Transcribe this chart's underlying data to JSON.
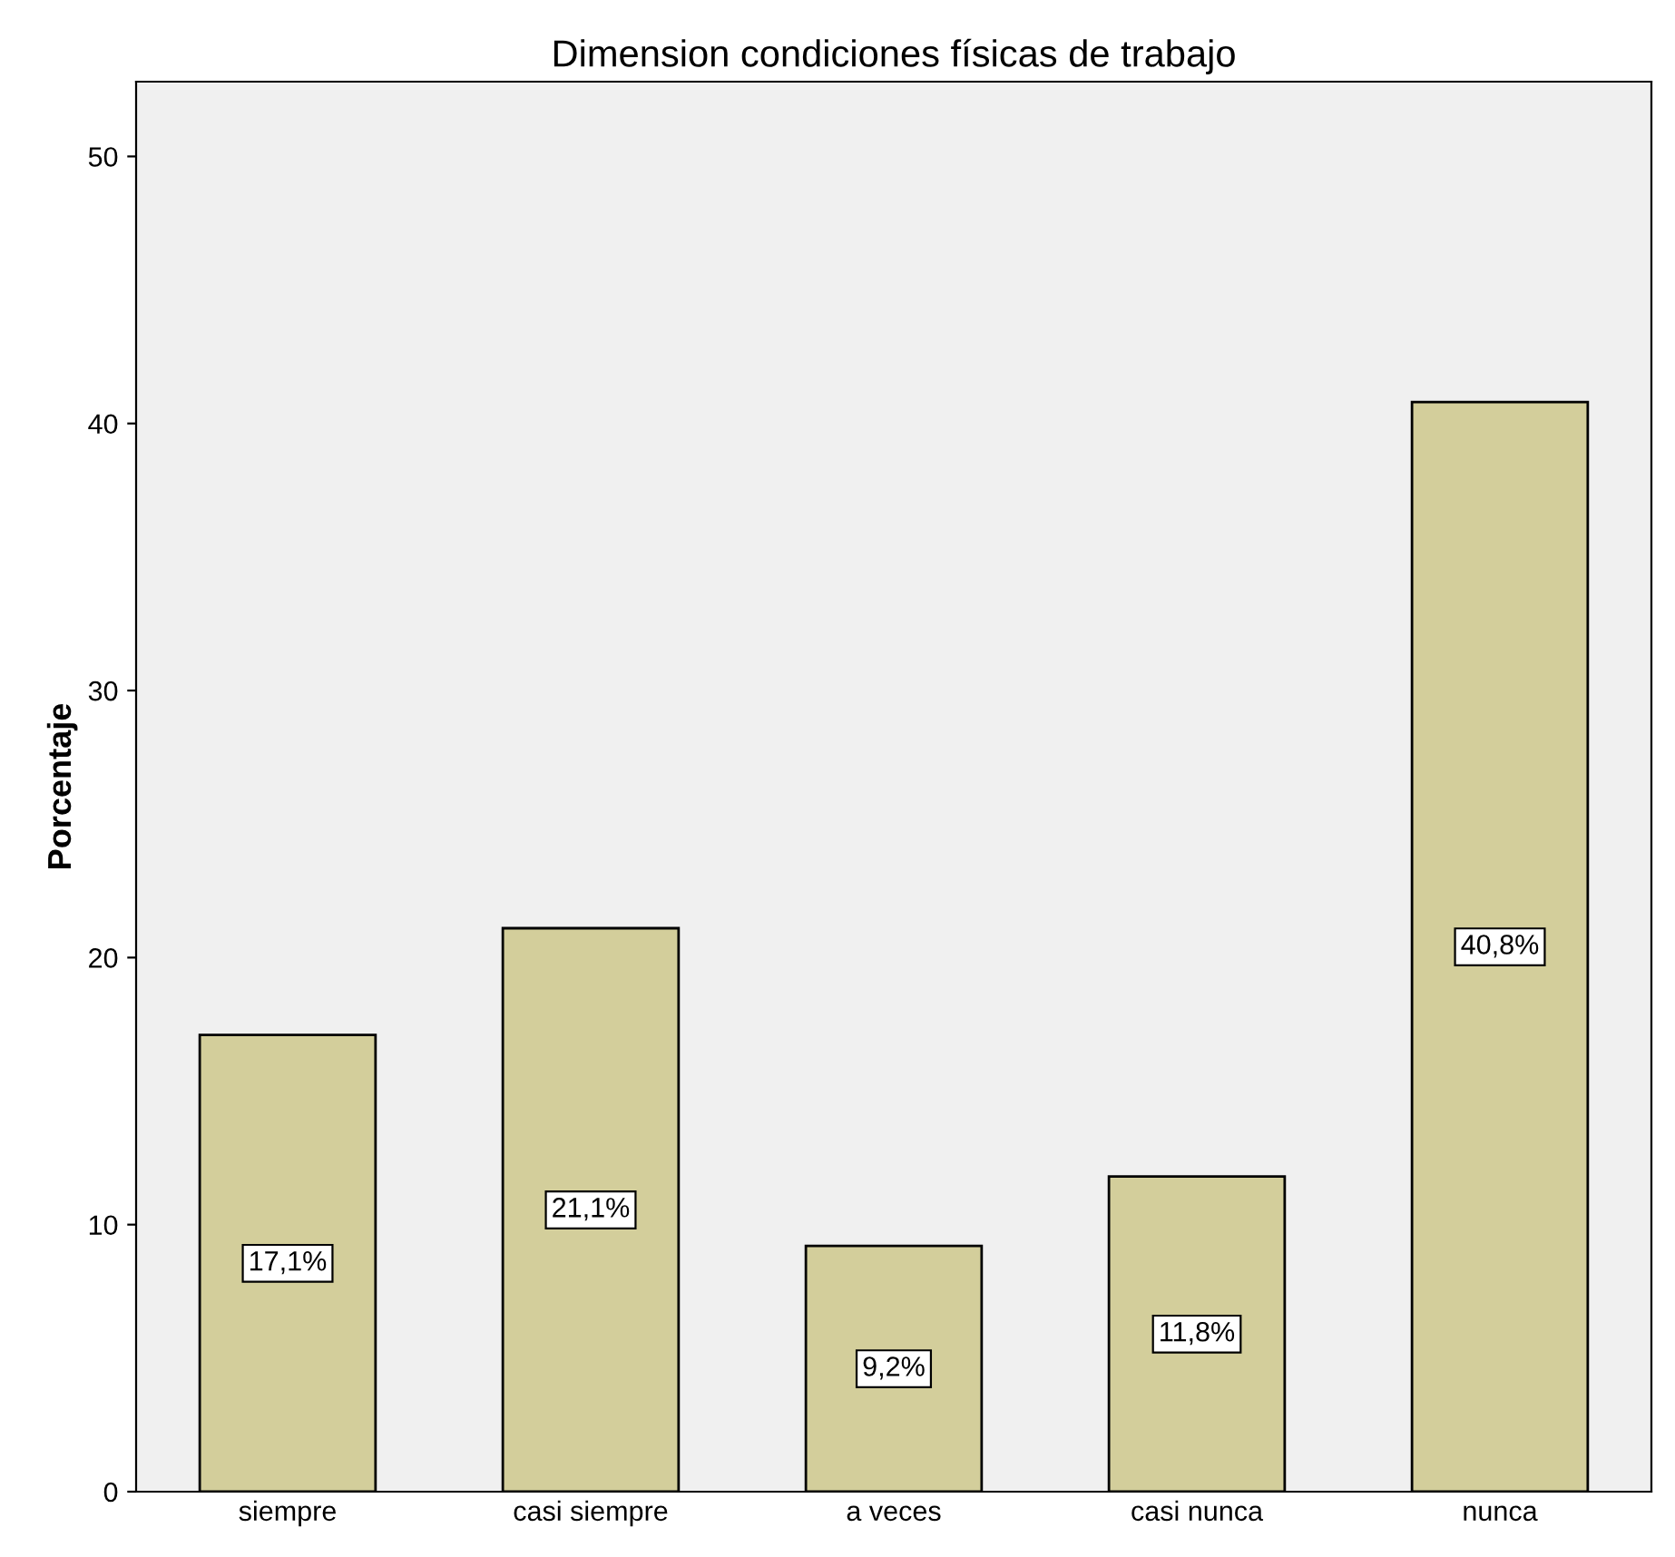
{
  "chart_data": {
    "type": "bar",
    "title": "Dimension condiciones físicas de trabajo",
    "ylabel": "Porcentaje",
    "categories": [
      "siempre",
      "casi siempre",
      "a veces",
      "casi nunca",
      "nunca"
    ],
    "values": [
      17.1,
      21.1,
      9.2,
      11.8,
      40.8
    ],
    "value_labels": [
      "17,1%",
      "21,1%",
      "9,2%",
      "11,8%",
      "40,8%"
    ],
    "color": "#d3ce9b",
    "ylim": [
      0,
      52.8
    ],
    "yticks": [
      0,
      10,
      20,
      30,
      40,
      50
    ],
    "grid": false
  }
}
